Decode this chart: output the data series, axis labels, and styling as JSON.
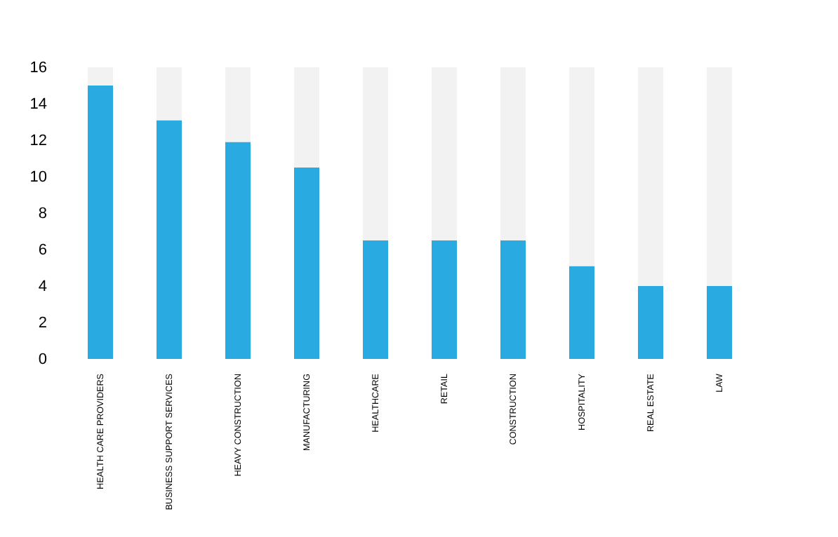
{
  "chart_data": {
    "type": "bar",
    "categories": [
      "HEALTH CARE PROVIDERS",
      "BUSINESS SUPPORT SERVICES",
      "HEAVY CONSTRUCTION",
      "MANUFACTURING",
      "HEALTHCARE",
      "RETAIL",
      "CONSTRUCTION",
      "HOSPITALITY",
      "REAL ESTATE",
      "LAW"
    ],
    "stacked": true,
    "series": [
      {
        "color": "#29abe2",
        "values": [
          15,
          13.1,
          11.9,
          10.5,
          6.5,
          6.5,
          6.5,
          5.1,
          4,
          4
        ]
      },
      {
        "color": "#f2f2f2",
        "values": [
          1,
          2.9,
          4.1,
          5.5,
          9.5,
          9.5,
          9.5,
          10.9,
          12,
          12
        ]
      }
    ],
    "ylim": [
      0,
      16
    ],
    "yticks": [
      0,
      2,
      4,
      6,
      8,
      10,
      12,
      14,
      16
    ],
    "grid": false
  }
}
